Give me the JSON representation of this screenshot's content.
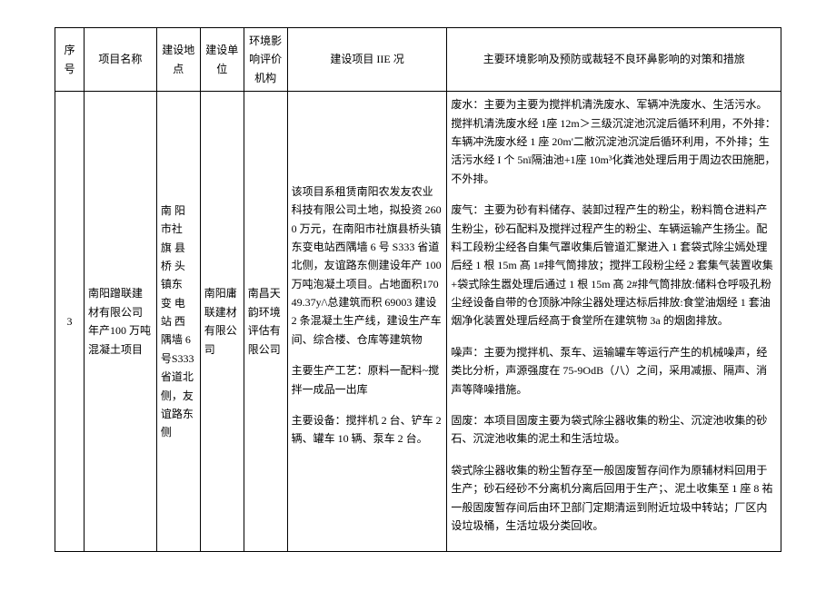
{
  "table": {
    "headers": {
      "no": "序号",
      "name": "项目名称",
      "loc": "建设地点",
      "unit": "建设单位",
      "agency": "环境影响评价机构",
      "status": "建设项目 IIE 况",
      "impact": "主要环境影响及预防或裁轻不良环鼻影响的对策和措旅"
    },
    "row": {
      "no": "3",
      "name": "南阳蹭联建材有限公司年产100 万吨混凝土项目",
      "loc": "南 阳 市社 旗 县桥 头 镇东 变 电站 西 隅墙 6 号S333 省道北侧，友谊路东侧",
      "unit": "南阳庸联建材有限公司",
      "agency": "南昌天韵环境评估有限公司",
      "status": {
        "p1": "该项目系租赁南阳农发友农业科技有限公司土地，拟投资 2600 万元，在南阳市社旗县桥头镇东变电站西隅墙 6 号 S333 省道北侧，友谊路东侧建设年产 100 万吨泡凝土项目。占地面积17049.37y/\\总建筑而积 69003 建设 2 条混凝土生产线，建设生产车间、综合楼、仓库等建筑物",
        "p2": "主要生产工艺：原料一配料~搅拌一成品一出库",
        "p3": "主要设备：搅拌机 2 台、铲车 2 辆、罐车 10 辆、泵车 2 台。"
      },
      "impact": {
        "p1": "废水：主要为主要为搅拌机清洗废水、军辆冲洗废水、生活污水。搅拌机清洗废水经 1座 12m＞三级沉淀池沉淀后循环利用，不外排：车辆冲洗废水经 1 座 20m'二敝沉淀池沉淀后循环利用，不外排；生活污水经 I 个 5nï隔油池+1座 10m³化粪池处理后用于周边农田施肥，不外排。",
        "p2": "废气：主要为砂有料储存、装卸过程产生的粉尘，粉料筒仓进料产生粉尘，砂石配料及搅拌过程产生的粉尘、车辆运输产生扬尘。配料工段粉尘经各自集气罩收集后管道汇聚进入 1 套袋式除尘嫣处理后经 1 根 15m 髙 1#排气筒排放；搅拌工段粉尘经 2 套集气装置收集+袋式除生嚣处理后通过 1 根 15m 髙 2#排气筒排放:储料仓呼吸孔粉尘经设备自带的仓顶脉冲除尘器处理达标后排放:食堂油烟经 1 套油烟净化装置处理后经高于食堂所在建筑物 3a 的烟囱排放。",
        "p3": "噪声：主要为搅拌机、泵车、运输罐车等运行产生的机械噪声，经类比分析，声源强度在 75-9OdB（八）之间，采用减振、隔声、消声等降噪措施。",
        "p4": "固废：本项目固废主要为袋式除尘器收集的粉尘、沉淀池收集的砂石、沉淀池收集的泥土和生活垃圾。",
        "p5": "袋式除尘器收集的粉尘暂存至一般固废暂存间作为原辅材料回用于生产；砂石经砂不分离机分离后回用于生产；、泥土收集至 1 座 8 祐一般固废暂存间后由环卫部门定期清运到附近垃圾中转站；厂区内设垃圾桶，生活垃圾分类回收。"
      }
    }
  }
}
